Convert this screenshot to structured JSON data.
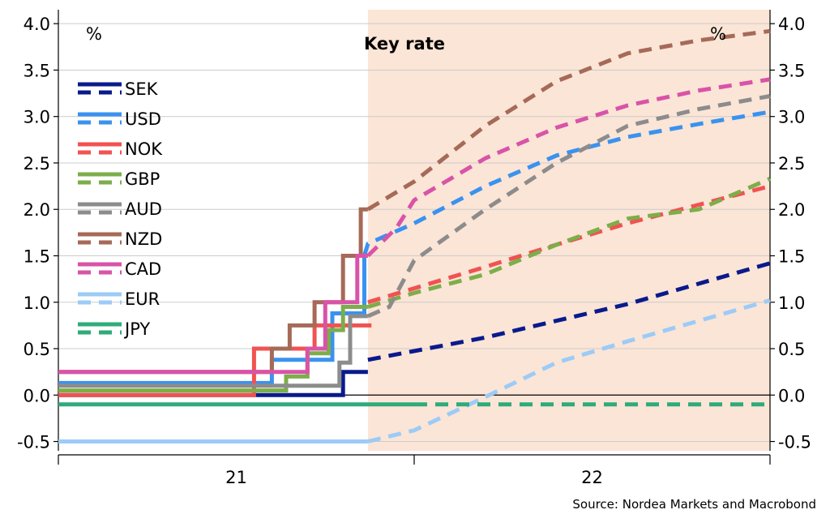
{
  "chart_data": {
    "type": "line",
    "title": "Key rate",
    "y_unit_left": "%",
    "y_unit_right": "%",
    "ylim": [
      -0.6,
      4.15
    ],
    "yticks": [
      -0.5,
      0.0,
      0.5,
      1.0,
      1.5,
      2.0,
      2.5,
      3.0,
      3.5,
      4.0
    ],
    "ytick_labels": [
      "-0.5",
      "0.0",
      "0.5",
      "1.0",
      "1.5",
      "2.0",
      "2.5",
      "3.0",
      "3.5",
      "4.0"
    ],
    "xlim": [
      2021.0,
      2023.0
    ],
    "x_tick_labels": [
      {
        "x": 2021.5,
        "label": "21"
      },
      {
        "x": 2022.5,
        "label": "22"
      }
    ],
    "x_major_ticks": [
      2021.0,
      2022.0,
      2023.0
    ],
    "forecast_start": 2021.87,
    "forecast_shade_color": "#fbe5d6",
    "grid": true,
    "legend_position": "top-left",
    "source": "Source: Nordea Markets and Macrobond",
    "series": [
      {
        "name": "SEK",
        "color": "#0a1a8c",
        "actual": [
          [
            2021.0,
            0.0
          ],
          [
            2021.8,
            0.0
          ],
          [
            2021.8,
            0.25
          ],
          [
            2021.87,
            0.25
          ]
        ],
        "forecast": [
          [
            2021.87,
            0.38
          ],
          [
            2022.2,
            0.62
          ],
          [
            2022.6,
            0.98
          ],
          [
            2023.0,
            1.42
          ]
        ]
      },
      {
        "name": "USD",
        "color": "#3a92ef",
        "actual": [
          [
            2021.0,
            0.13
          ],
          [
            2021.6,
            0.13
          ],
          [
            2021.6,
            0.38
          ],
          [
            2021.77,
            0.38
          ],
          [
            2021.77,
            0.88
          ],
          [
            2021.86,
            0.88
          ],
          [
            2021.86,
            1.5
          ]
        ],
        "forecast": [
          [
            2021.86,
            1.5
          ],
          [
            2021.87,
            1.63
          ],
          [
            2022.0,
            1.85
          ],
          [
            2022.2,
            2.25
          ],
          [
            2022.4,
            2.58
          ],
          [
            2022.6,
            2.78
          ],
          [
            2022.8,
            2.92
          ],
          [
            2023.0,
            3.05
          ]
        ]
      },
      {
        "name": "NOK",
        "color": "#f15252",
        "actual": [
          [
            2021.0,
            0.0
          ],
          [
            2021.55,
            0.0
          ],
          [
            2021.55,
            0.5
          ],
          [
            2021.72,
            0.5
          ],
          [
            2021.72,
            0.75
          ],
          [
            2021.88,
            0.75
          ]
        ],
        "forecast": [
          [
            2021.87,
            1.0
          ],
          [
            2022.0,
            1.15
          ],
          [
            2022.2,
            1.38
          ],
          [
            2022.4,
            1.62
          ],
          [
            2022.6,
            1.85
          ],
          [
            2022.8,
            2.05
          ],
          [
            2023.0,
            2.25
          ]
        ]
      },
      {
        "name": "GBP",
        "color": "#7cae4a",
        "actual": [
          [
            2021.0,
            0.05
          ],
          [
            2021.64,
            0.05
          ],
          [
            2021.64,
            0.2
          ],
          [
            2021.7,
            0.2
          ],
          [
            2021.7,
            0.45
          ],
          [
            2021.76,
            0.45
          ],
          [
            2021.76,
            0.7
          ],
          [
            2021.8,
            0.7
          ],
          [
            2021.8,
            0.95
          ],
          [
            2021.87,
            0.95
          ]
        ],
        "forecast": [
          [
            2021.87,
            0.95
          ],
          [
            2022.0,
            1.1
          ],
          [
            2022.2,
            1.3
          ],
          [
            2022.4,
            1.62
          ],
          [
            2022.6,
            1.9
          ],
          [
            2022.8,
            2.0
          ],
          [
            2023.0,
            2.33
          ]
        ]
      },
      {
        "name": "AUD",
        "color": "#8c8c8c",
        "actual": [
          [
            2021.0,
            0.1
          ],
          [
            2021.79,
            0.1
          ],
          [
            2021.79,
            0.35
          ],
          [
            2021.82,
            0.35
          ],
          [
            2021.82,
            0.85
          ],
          [
            2021.87,
            0.85
          ]
        ],
        "forecast": [
          [
            2021.87,
            0.85
          ],
          [
            2021.93,
            0.95
          ],
          [
            2022.0,
            1.45
          ],
          [
            2022.2,
            2.0
          ],
          [
            2022.4,
            2.5
          ],
          [
            2022.6,
            2.9
          ],
          [
            2022.8,
            3.08
          ],
          [
            2023.0,
            3.22
          ]
        ]
      },
      {
        "name": "NZD",
        "color": "#a66a58",
        "actual": [
          [
            2021.0,
            0.25
          ],
          [
            2021.6,
            0.25
          ],
          [
            2021.6,
            0.5
          ],
          [
            2021.65,
            0.5
          ],
          [
            2021.65,
            0.75
          ],
          [
            2021.72,
            0.75
          ],
          [
            2021.72,
            1.0
          ],
          [
            2021.8,
            1.0
          ],
          [
            2021.8,
            1.5
          ],
          [
            2021.85,
            1.5
          ],
          [
            2021.85,
            2.0
          ],
          [
            2021.87,
            2.0
          ]
        ],
        "forecast": [
          [
            2021.87,
            2.0
          ],
          [
            2022.0,
            2.3
          ],
          [
            2022.2,
            2.9
          ],
          [
            2022.4,
            3.38
          ],
          [
            2022.6,
            3.68
          ],
          [
            2022.8,
            3.82
          ],
          [
            2023.0,
            3.92
          ]
        ]
      },
      {
        "name": "CAD",
        "color": "#d953a8",
        "actual": [
          [
            2021.0,
            0.25
          ],
          [
            2021.7,
            0.25
          ],
          [
            2021.7,
            0.5
          ],
          [
            2021.75,
            0.5
          ],
          [
            2021.75,
            1.0
          ],
          [
            2021.84,
            1.0
          ],
          [
            2021.84,
            1.5
          ],
          [
            2021.87,
            1.5
          ]
        ],
        "forecast": [
          [
            2021.87,
            1.5
          ],
          [
            2021.95,
            1.8
          ],
          [
            2022.0,
            2.1
          ],
          [
            2022.2,
            2.55
          ],
          [
            2022.4,
            2.88
          ],
          [
            2022.6,
            3.12
          ],
          [
            2022.8,
            3.28
          ],
          [
            2023.0,
            3.4
          ]
        ]
      },
      {
        "name": "EUR",
        "color": "#9ccbf7",
        "actual": [
          [
            2021.0,
            -0.5
          ],
          [
            2021.87,
            -0.5
          ]
        ],
        "forecast": [
          [
            2021.87,
            -0.5
          ],
          [
            2022.0,
            -0.38
          ],
          [
            2022.2,
            -0.02
          ],
          [
            2022.4,
            0.35
          ],
          [
            2022.6,
            0.58
          ],
          [
            2022.8,
            0.8
          ],
          [
            2023.0,
            1.02
          ]
        ]
      },
      {
        "name": "JPY",
        "color": "#2eab7a",
        "actual": [
          [
            2021.0,
            -0.1
          ],
          [
            2022.0,
            -0.1
          ]
        ],
        "forecast": [
          [
            2022.0,
            -0.1
          ],
          [
            2023.0,
            -0.1
          ]
        ]
      }
    ]
  }
}
